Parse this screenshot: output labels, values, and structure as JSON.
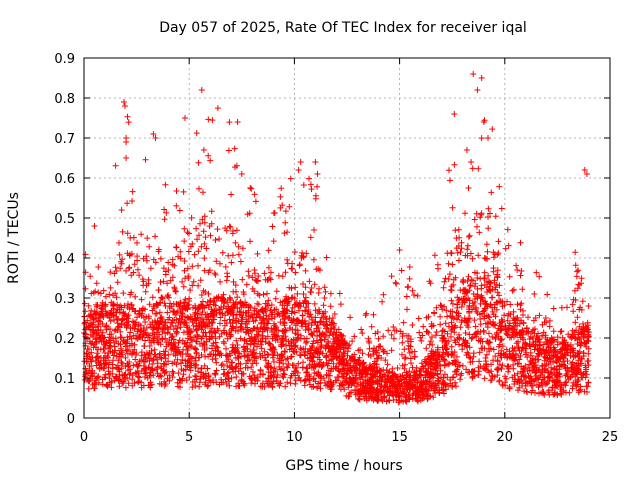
{
  "chart_data": {
    "type": "scatter",
    "title": "Day 057 of 2025, Rate Of TEC Index for receiver iqal",
    "xlabel": "GPS time / hours",
    "ylabel": "ROTI / TECUs",
    "xlim": [
      0,
      25
    ],
    "ylim": [
      0,
      0.9
    ],
    "x_ticks": [
      0,
      5,
      10,
      15,
      20,
      25
    ],
    "y_ticks": [
      0,
      0.1,
      0.2,
      0.3,
      0.4,
      0.5,
      0.6,
      0.7,
      0.8,
      0.9
    ],
    "grid": true,
    "marker": "+",
    "colors": {
      "points": "#ff0000",
      "grid": "#a0a0a0",
      "axes": "#000000"
    },
    "envelope": {
      "note_x": "hours",
      "x": [
        0.0,
        1.0,
        2.0,
        3.0,
        4.0,
        5.0,
        6.0,
        7.0,
        8.0,
        9.0,
        10.0,
        11.0,
        12.0,
        12.5,
        13.0,
        14.0,
        15.0,
        15.5,
        16.0,
        17.0,
        17.5,
        18.0,
        18.5,
        19.0,
        19.5,
        20.0,
        21.0,
        22.0,
        23.0,
        23.5,
        24.0
      ],
      "base": [
        0.14,
        0.15,
        0.15,
        0.15,
        0.16,
        0.15,
        0.16,
        0.16,
        0.15,
        0.15,
        0.16,
        0.15,
        0.12,
        0.09,
        0.07,
        0.06,
        0.05,
        0.05,
        0.06,
        0.1,
        0.15,
        0.18,
        0.2,
        0.2,
        0.18,
        0.15,
        0.12,
        0.1,
        0.1,
        0.12,
        0.12
      ],
      "top": [
        0.45,
        0.48,
        0.78,
        0.7,
        0.6,
        0.74,
        0.82,
        0.74,
        0.6,
        0.55,
        0.64,
        0.64,
        0.35,
        0.28,
        0.25,
        0.3,
        0.42,
        0.38,
        0.4,
        0.45,
        0.75,
        0.7,
        0.86,
        0.85,
        0.7,
        0.5,
        0.45,
        0.35,
        0.3,
        0.6,
        0.3
      ]
    },
    "outliers": [
      {
        "x": 1.9,
        "y": 0.79
      },
      {
        "x": 1.95,
        "y": 0.78
      },
      {
        "x": 2.0,
        "y": 0.7
      },
      {
        "x": 2.0,
        "y": 0.69
      },
      {
        "x": 3.3,
        "y": 0.71
      },
      {
        "x": 3.4,
        "y": 0.7
      },
      {
        "x": 4.8,
        "y": 0.75
      },
      {
        "x": 5.6,
        "y": 0.82
      },
      {
        "x": 5.7,
        "y": 0.67
      },
      {
        "x": 7.3,
        "y": 0.74
      },
      {
        "x": 7.5,
        "y": 0.61
      },
      {
        "x": 10.3,
        "y": 0.64
      },
      {
        "x": 10.2,
        "y": 0.62
      },
      {
        "x": 11.0,
        "y": 0.64
      },
      {
        "x": 11.1,
        "y": 0.61
      },
      {
        "x": 17.6,
        "y": 0.76
      },
      {
        "x": 18.5,
        "y": 0.86
      },
      {
        "x": 18.9,
        "y": 0.85
      },
      {
        "x": 18.7,
        "y": 0.82
      },
      {
        "x": 19.0,
        "y": 0.74
      },
      {
        "x": 19.2,
        "y": 0.7
      },
      {
        "x": 23.8,
        "y": 0.62
      },
      {
        "x": 23.9,
        "y": 0.61
      },
      {
        "x": 18.2,
        "y": 0.67
      },
      {
        "x": 18.4,
        "y": 0.64
      },
      {
        "x": 2.0,
        "y": 0.65
      },
      {
        "x": 0.5,
        "y": 0.48
      },
      {
        "x": 15.0,
        "y": 0.42
      }
    ]
  }
}
